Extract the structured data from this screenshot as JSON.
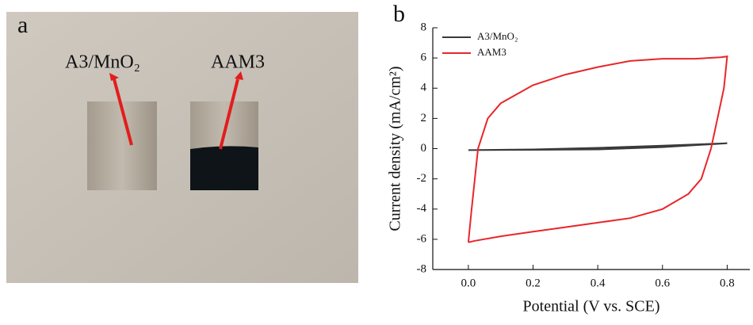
{
  "photo": {
    "panel_label": "a",
    "labels": [
      "A3/MnO₂",
      "AAM3"
    ]
  },
  "chart_data": {
    "type": "line",
    "panel_label": "b",
    "xlabel": "Potential (V vs. SCE)",
    "ylabel": "Current density (mA/cm²)",
    "xlim": [
      -0.11,
      0.87
    ],
    "ylim": [
      -8,
      8
    ],
    "xticks": [
      {
        "value": 0,
        "label": "0.0"
      },
      0.2,
      0.4,
      0.6,
      0.8
    ],
    "yticks": [
      -8,
      -6,
      -4,
      -2,
      0,
      2,
      4,
      6,
      8
    ],
    "legend": "upper-left",
    "series": [
      {
        "name": "A3/MnO₂",
        "color": "#3a3a3a",
        "x": [
          0,
          0.2,
          0.4,
          0.6,
          0.8,
          0.6,
          0.4,
          0.2,
          0
        ],
        "values": [
          -0.1,
          -0.08,
          -0.05,
          0.1,
          0.35,
          0.2,
          0.05,
          -0.05,
          -0.1
        ]
      },
      {
        "name": "AAM3",
        "color": "#e8262a",
        "x": [
          0,
          0.01,
          0.03,
          0.06,
          0.1,
          0.2,
          0.3,
          0.4,
          0.5,
          0.6,
          0.7,
          0.78,
          0.8,
          0.79,
          0.77,
          0.75,
          0.72,
          0.68,
          0.6,
          0.5,
          0.4,
          0.3,
          0.2,
          0.1,
          0.02,
          0
        ],
        "values": [
          -6.2,
          -4,
          0,
          2,
          3,
          4.2,
          4.9,
          5.4,
          5.8,
          5.95,
          5.95,
          6.05,
          6.1,
          4,
          2,
          0,
          -2,
          -3,
          -4,
          -4.6,
          -4.9,
          -5.2,
          -5.5,
          -5.8,
          -6.1,
          -6.2
        ]
      }
    ]
  }
}
